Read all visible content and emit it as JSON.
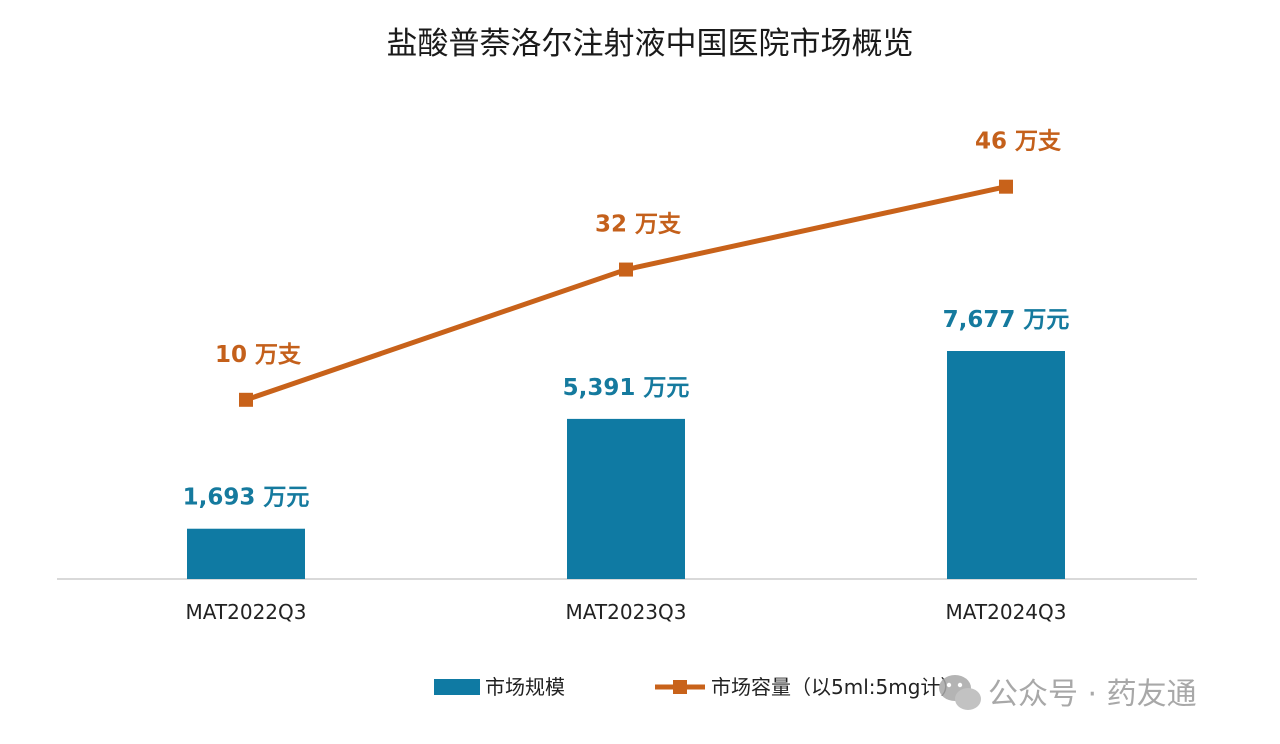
{
  "chart_data": {
    "type": "bar+line",
    "title": "盐酸普萘洛尔注射液中国医院市场概览",
    "categories": [
      "MAT2022Q3",
      "MAT2023Q3",
      "MAT2024Q3"
    ],
    "series": [
      {
        "name": "市场规模",
        "type": "bar",
        "unit": "万元",
        "values": [
          1693,
          5391,
          7677
        ],
        "labels": [
          "1,693 万元",
          "5,391 万元",
          "7,677 万元"
        ],
        "color": "#0f7aa3"
      },
      {
        "name": "市场容量（以5ml:5mg计）",
        "type": "line",
        "unit": "万支",
        "values": [
          10,
          32,
          46
        ],
        "labels": [
          "10 万支",
          "32 万支",
          "46 万支"
        ],
        "color": "#c8621a"
      }
    ],
    "xlabel": "",
    "ylabel": "",
    "legend_position": "bottom",
    "grid": false
  },
  "legend": {
    "bar_label": "市场规模",
    "line_label": "市场容量（以5ml:5mg计）"
  },
  "watermark": {
    "icon": "wechat-icon",
    "text": "公众号 · 药友通"
  }
}
